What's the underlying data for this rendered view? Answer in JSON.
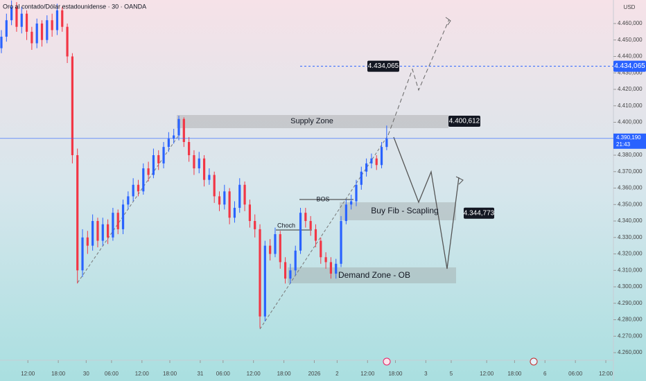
{
  "chart_data": {
    "type": "candlestick",
    "title": "Oro al contado/Dólar estadounidense · 30 · OANDA",
    "currency": "USD",
    "up_color": "#2962ff",
    "down_color": "#f23645",
    "xlim": [
      0,
      242
    ],
    "ylim": [
      4255.4,
      4474.3
    ],
    "x": [
      0,
      2,
      4,
      6,
      8,
      10,
      12,
      14,
      16,
      18,
      20,
      22,
      24,
      26,
      28,
      30,
      32,
      34,
      36,
      38,
      40,
      42,
      44,
      46,
      48,
      50,
      52,
      54,
      56,
      58,
      60,
      62,
      64,
      66,
      68,
      70,
      72,
      74,
      76,
      78,
      80,
      82,
      84,
      86,
      88,
      90,
      92,
      94,
      96,
      98,
      100,
      102,
      104,
      106,
      108,
      110,
      112,
      114,
      116,
      118,
      120,
      122,
      124,
      126,
      128,
      130,
      132,
      134,
      136,
      138,
      140,
      142,
      144,
      146,
      148,
      150,
      152
    ],
    "open": [
      4445,
      4452,
      4462,
      4470,
      4458,
      4466,
      4455,
      4448,
      4460,
      4450,
      4462,
      4456,
      4468,
      4458,
      4440,
      4380,
      4310,
      4330,
      4325,
      4340,
      4328,
      4338,
      4330,
      4345,
      4335,
      4350,
      4355,
      4362,
      4358,
      4372,
      4368,
      4380,
      4375,
      4385,
      4390,
      4392,
      4402,
      4388,
      4380,
      4372,
      4378,
      4365,
      4368,
      4355,
      4350,
      4358,
      4342,
      4348,
      4362,
      4350,
      4340,
      4335,
      4282,
      4325,
      4320,
      4332,
      4315,
      4305,
      4310,
      4322,
      4345,
      4340,
      4335,
      4328,
      4318,
      4315,
      4308,
      4314,
      4340,
      4350,
      4352,
      4362,
      4370,
      4375,
      4378,
      4374,
      4385
    ],
    "high": [
      4456,
      4466,
      4474,
      4473,
      4470,
      4468,
      4458,
      4463,
      4462,
      4465,
      4466,
      4472,
      4470,
      4460,
      4442,
      4384,
      4335,
      4334,
      4344,
      4342,
      4342,
      4341,
      4348,
      4347,
      4353,
      4358,
      4366,
      4365,
      4375,
      4376,
      4384,
      4383,
      4388,
      4394,
      4396,
      4404,
      4403,
      4391,
      4383,
      4382,
      4380,
      4372,
      4370,
      4358,
      4362,
      4360,
      4352,
      4366,
      4364,
      4353,
      4344,
      4338,
      4328,
      4329,
      4336,
      4334,
      4318,
      4314,
      4325,
      4348,
      4348,
      4343,
      4338,
      4330,
      4321,
      4318,
      4317,
      4343,
      4353,
      4356,
      4365,
      4373,
      4378,
      4381,
      4380,
      4388,
      4398
    ],
    "low": [
      4442,
      4449,
      4459,
      4455,
      4454,
      4450,
      4444,
      4445,
      4446,
      4448,
      4452,
      4453,
      4455,
      4436,
      4375,
      4302,
      4306,
      4320,
      4322,
      4324,
      4325,
      4326,
      4328,
      4332,
      4332,
      4347,
      4352,
      4355,
      4356,
      4364,
      4366,
      4371,
      4372,
      4382,
      4387,
      4389,
      4385,
      4376,
      4368,
      4369,
      4361,
      4362,
      4351,
      4346,
      4347,
      4338,
      4339,
      4345,
      4346,
      4336,
      4330,
      4275,
      4279,
      4316,
      4318,
      4311,
      4302,
      4302,
      4307,
      4320,
      4336,
      4331,
      4324,
      4314,
      4311,
      4305,
      4305,
      4312,
      4338,
      4347,
      4349,
      4359,
      4367,
      4372,
      4371,
      4372,
      4383
    ],
    "close": [
      4452,
      4462,
      4470,
      4458,
      4466,
      4455,
      4448,
      4460,
      4450,
      4462,
      4456,
      4468,
      4458,
      4440,
      4380,
      4310,
      4330,
      4325,
      4340,
      4328,
      4338,
      4330,
      4345,
      4335,
      4350,
      4355,
      4362,
      4358,
      4372,
      4368,
      4380,
      4375,
      4385,
      4390,
      4392,
      4402,
      4388,
      4380,
      4372,
      4378,
      4365,
      4368,
      4355,
      4350,
      4358,
      4342,
      4348,
      4362,
      4350,
      4340,
      4335,
      4282,
      4325,
      4320,
      4332,
      4315,
      4305,
      4310,
      4322,
      4345,
      4340,
      4335,
      4328,
      4318,
      4315,
      4308,
      4314,
      4340,
      4350,
      4352,
      4362,
      4370,
      4375,
      4378,
      4374,
      4385,
      4390
    ],
    "yticks": [
      {
        "value": 4260,
        "label": "4.260,000"
      },
      {
        "value": 4270,
        "label": "4.270,000"
      },
      {
        "value": 4280,
        "label": "4.280,000"
      },
      {
        "value": 4290,
        "label": "4.290,000"
      },
      {
        "value": 4300,
        "label": "4.300,000"
      },
      {
        "value": 4310,
        "label": "4.310,000"
      },
      {
        "value": 4320,
        "label": "4.320,000"
      },
      {
        "value": 4330,
        "label": "4.330,000"
      },
      {
        "value": 4340,
        "label": "4.340,000"
      },
      {
        "value": 4350,
        "label": "4.350,000"
      },
      {
        "value": 4360,
        "label": "4.360,000"
      },
      {
        "value": 4370,
        "label": "4.370,000"
      },
      {
        "value": 4380,
        "label": "4.380,000"
      },
      {
        "value": 4390,
        "label": "4.390,000"
      },
      {
        "value": 4400,
        "label": "4.400,000"
      },
      {
        "value": 4410,
        "label": "4.410,000"
      },
      {
        "value": 4420,
        "label": "4.420,000"
      },
      {
        "value": 4430,
        "label": "4.430,000"
      },
      {
        "value": 4440,
        "label": "4.440,000"
      },
      {
        "value": 4450,
        "label": "4.450,000"
      },
      {
        "value": 4460,
        "label": "4.460,000"
      }
    ],
    "xticks": [
      {
        "value": 11,
        "label": "12:00"
      },
      {
        "value": 23,
        "label": "18:00"
      },
      {
        "value": 34,
        "label": "30"
      },
      {
        "value": 44,
        "label": "06:00"
      },
      {
        "value": 56,
        "label": "12:00"
      },
      {
        "value": 67,
        "label": "18:00"
      },
      {
        "value": 79,
        "label": "31"
      },
      {
        "value": 88,
        "label": "06:00"
      },
      {
        "value": 100,
        "label": "12:00"
      },
      {
        "value": 112,
        "label": "18:00"
      },
      {
        "value": 124,
        "label": "2026"
      },
      {
        "value": 133,
        "label": "2"
      },
      {
        "value": 145,
        "label": "12:00"
      },
      {
        "value": 156,
        "label": "18:00"
      },
      {
        "value": 168,
        "label": "3"
      },
      {
        "value": 178,
        "label": "5"
      },
      {
        "value": 192,
        "label": "12:00"
      },
      {
        "value": 203,
        "label": "18:00"
      },
      {
        "value": 215,
        "label": "6"
      },
      {
        "value": 227,
        "label": "06:00"
      },
      {
        "value": 239,
        "label": "12:00"
      }
    ],
    "target_level": {
      "value": 4434.065,
      "label": "4.434,065"
    },
    "supply_level": {
      "value": 4400.612,
      "label": "4.400,612"
    },
    "fib_level": {
      "value": 4344.773,
      "label": "4.344,773"
    },
    "current_price": {
      "value": 4390.19,
      "label": "4.390,190"
    },
    "countdown": "21:43",
    "annotations": [
      "Supply Zone",
      "Buy Fib - Scapling",
      "Demand Zone - OB",
      "Choch",
      "BOS"
    ]
  }
}
